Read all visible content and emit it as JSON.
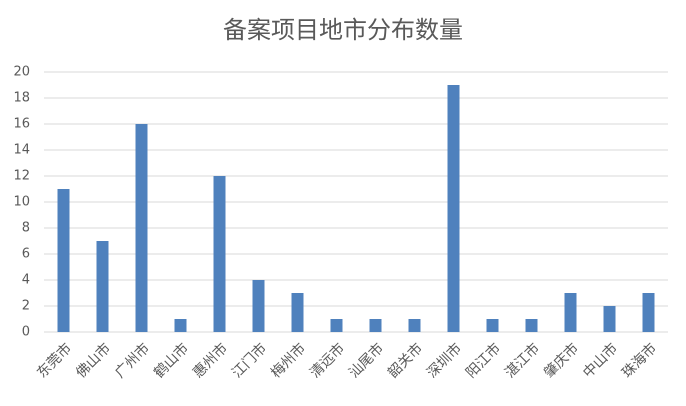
{
  "chart_data": {
    "type": "bar",
    "title": "备案项目地市分布数量",
    "categories": [
      "东莞市",
      "佛山市",
      "广州市",
      "鹤山市",
      "惠州市",
      "江门市",
      "梅州市",
      "清远市",
      "汕尾市",
      "韶关市",
      "深圳市",
      "阳江市",
      "湛江市",
      "肇庆市",
      "中山市",
      "珠海市"
    ],
    "values": [
      11,
      7,
      16,
      1,
      12,
      4,
      3,
      1,
      1,
      1,
      19,
      1,
      1,
      3,
      2,
      3
    ],
    "color": "#4f81bd",
    "ylim": [
      0,
      20
    ],
    "yticks": [
      0,
      2,
      4,
      6,
      8,
      10,
      12,
      14,
      16,
      18,
      20
    ],
    "grid": true
  }
}
